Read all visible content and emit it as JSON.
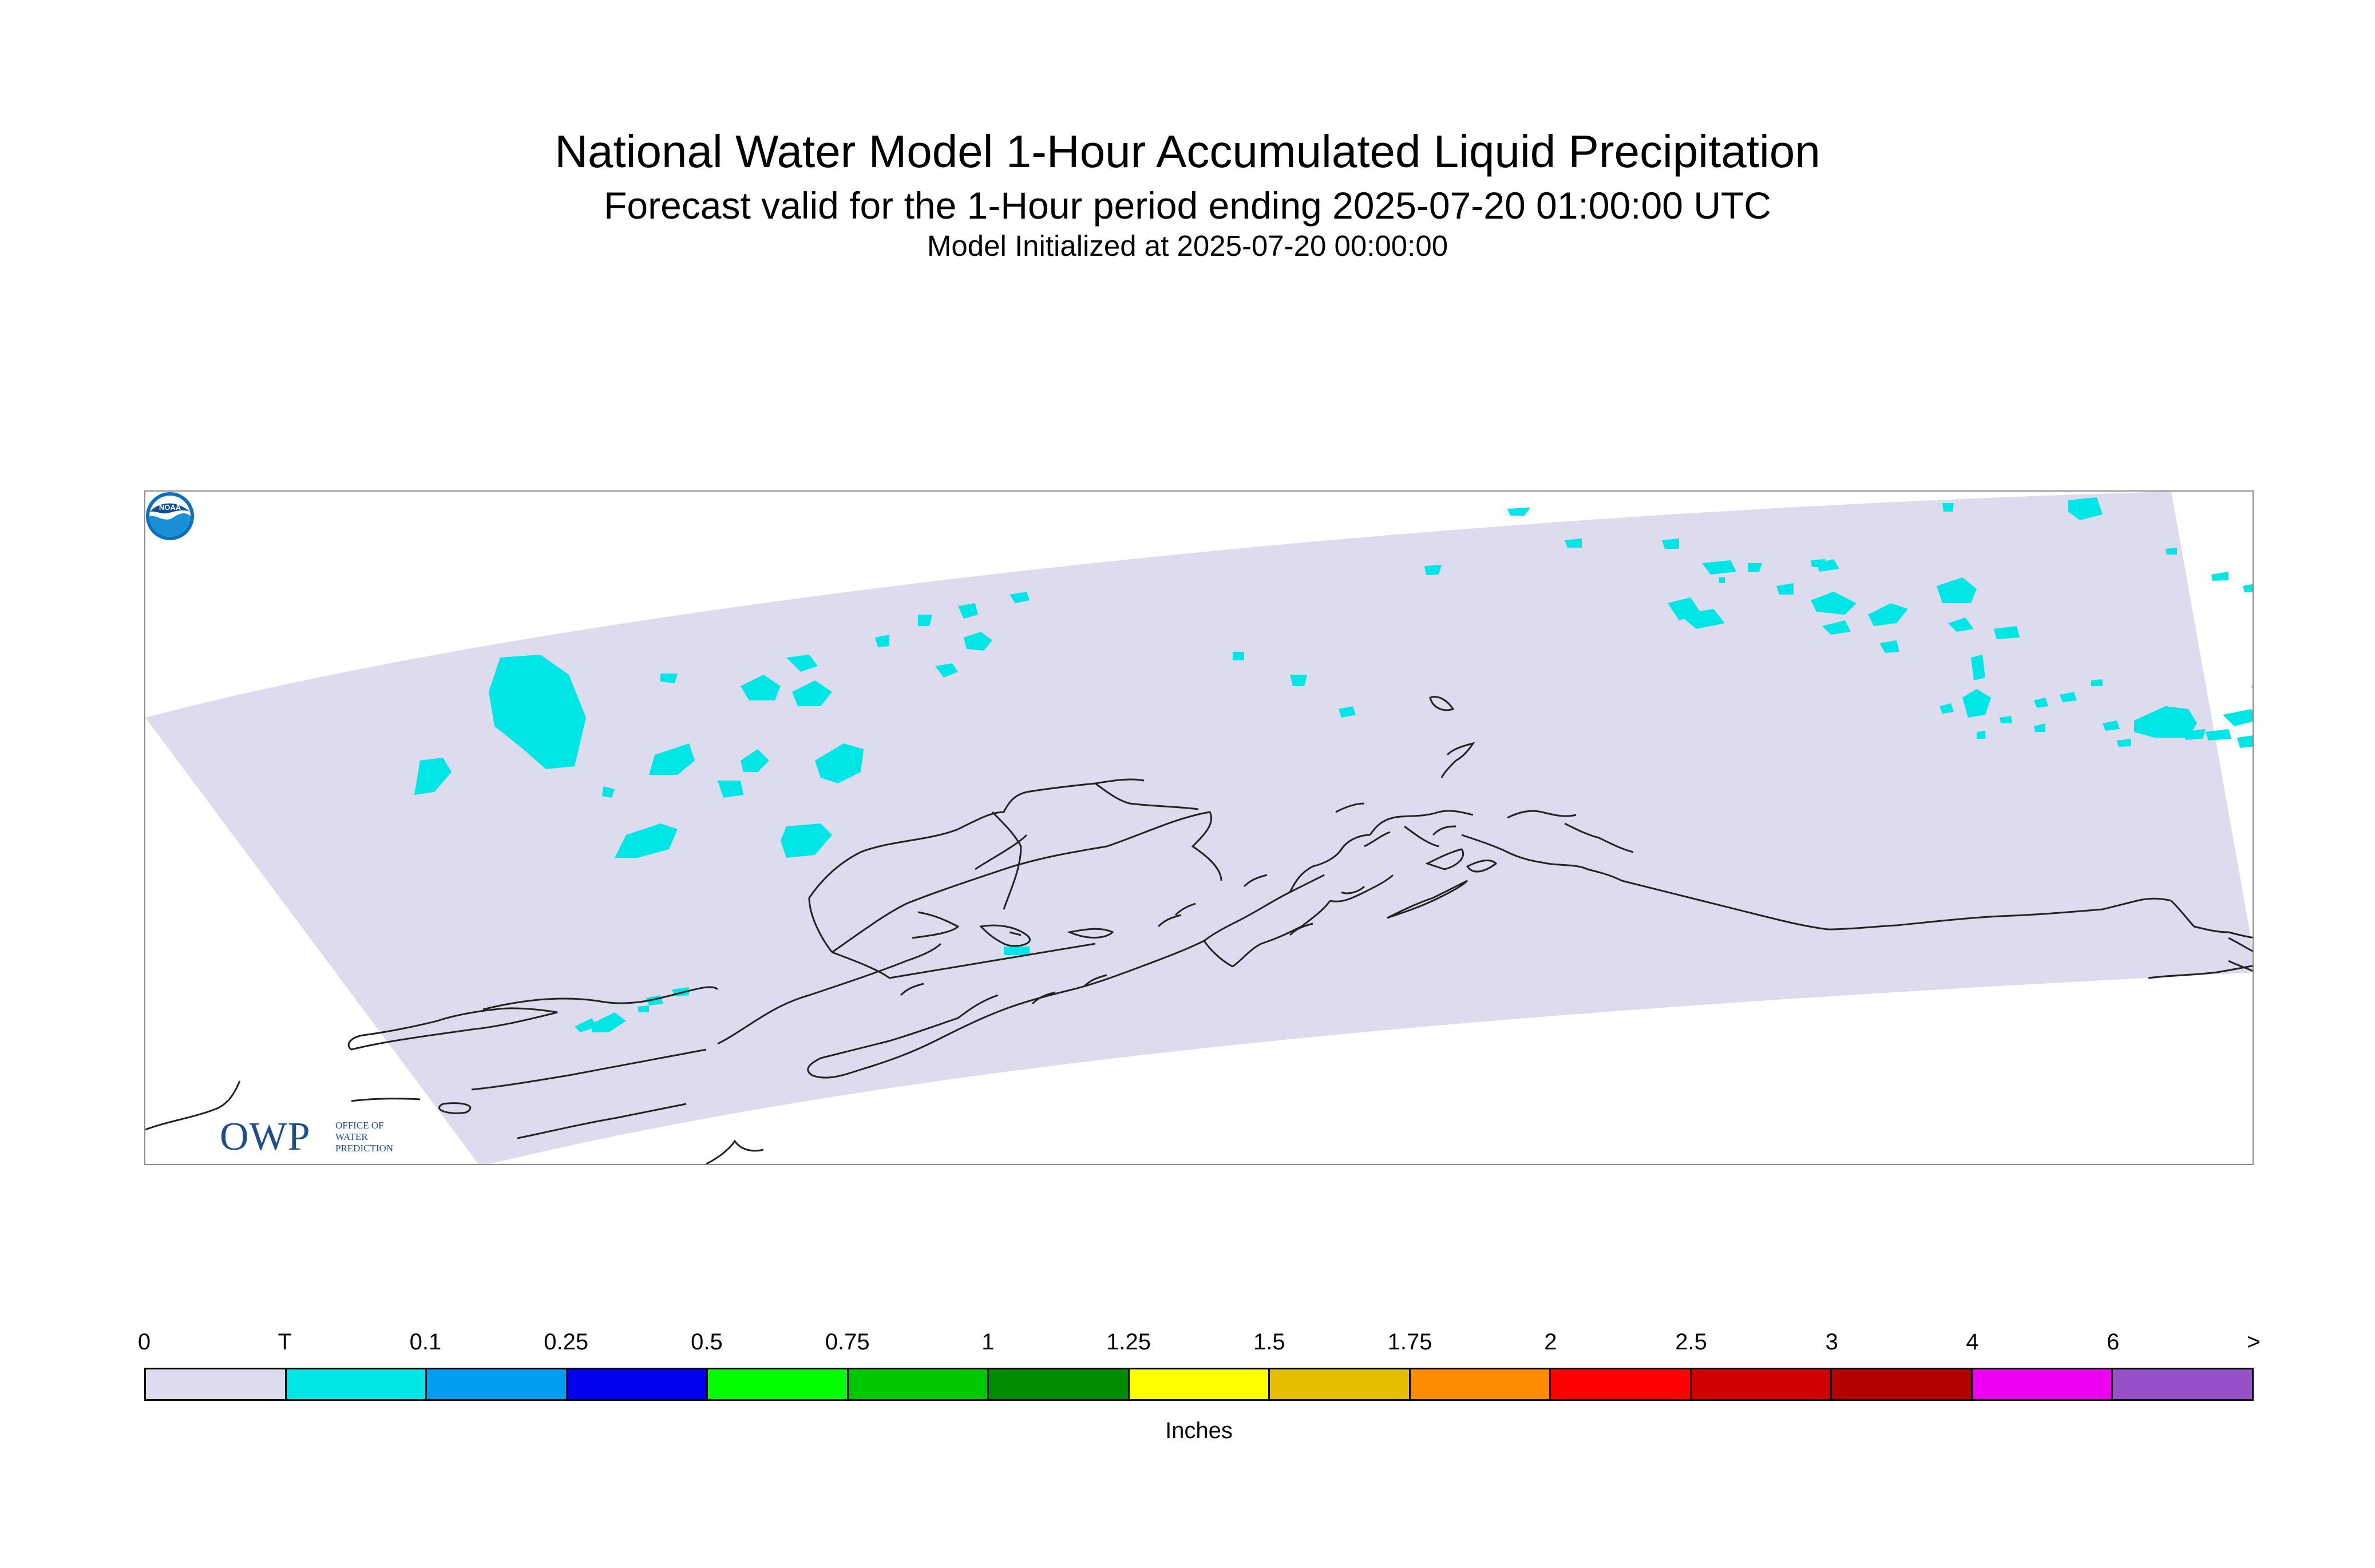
{
  "header": {
    "title": "National Water Model 1-Hour Accumulated Liquid Precipitation",
    "subtitle": "Forecast valid for the 1-Hour period ending 2025-07-20 01:00:00 UTC",
    "initialized": "Model Initialized at 2025-07-20 00:00:00"
  },
  "map": {
    "domain_fill_color": "#dcdcee",
    "trace_fill_color": "#00e6e6",
    "coastline_color": "#222222",
    "owp_logo": {
      "letters": "OWP",
      "lines": [
        "OFFICE OF",
        "WATER",
        "PREDICTION"
      ],
      "color": "#1f4e8c"
    },
    "noaa_logo": {
      "text": "NOAA",
      "color": "#0b6fbf"
    }
  },
  "legend": {
    "tick_labels": [
      "0",
      "T",
      "0.1",
      "0.25",
      "0.5",
      "0.75",
      "1",
      "1.25",
      "1.5",
      "1.75",
      "2",
      "2.5",
      "3",
      "4",
      "6",
      ">"
    ],
    "colors": [
      "#dcdcee",
      "#00e6e6",
      "#009ef0",
      "#0000f0",
      "#00ff00",
      "#00c800",
      "#008c00",
      "#ffff00",
      "#e6be00",
      "#ff8c00",
      "#ff0000",
      "#d20000",
      "#b40000",
      "#f000f0",
      "#9650c8"
    ],
    "units": "Inches"
  }
}
